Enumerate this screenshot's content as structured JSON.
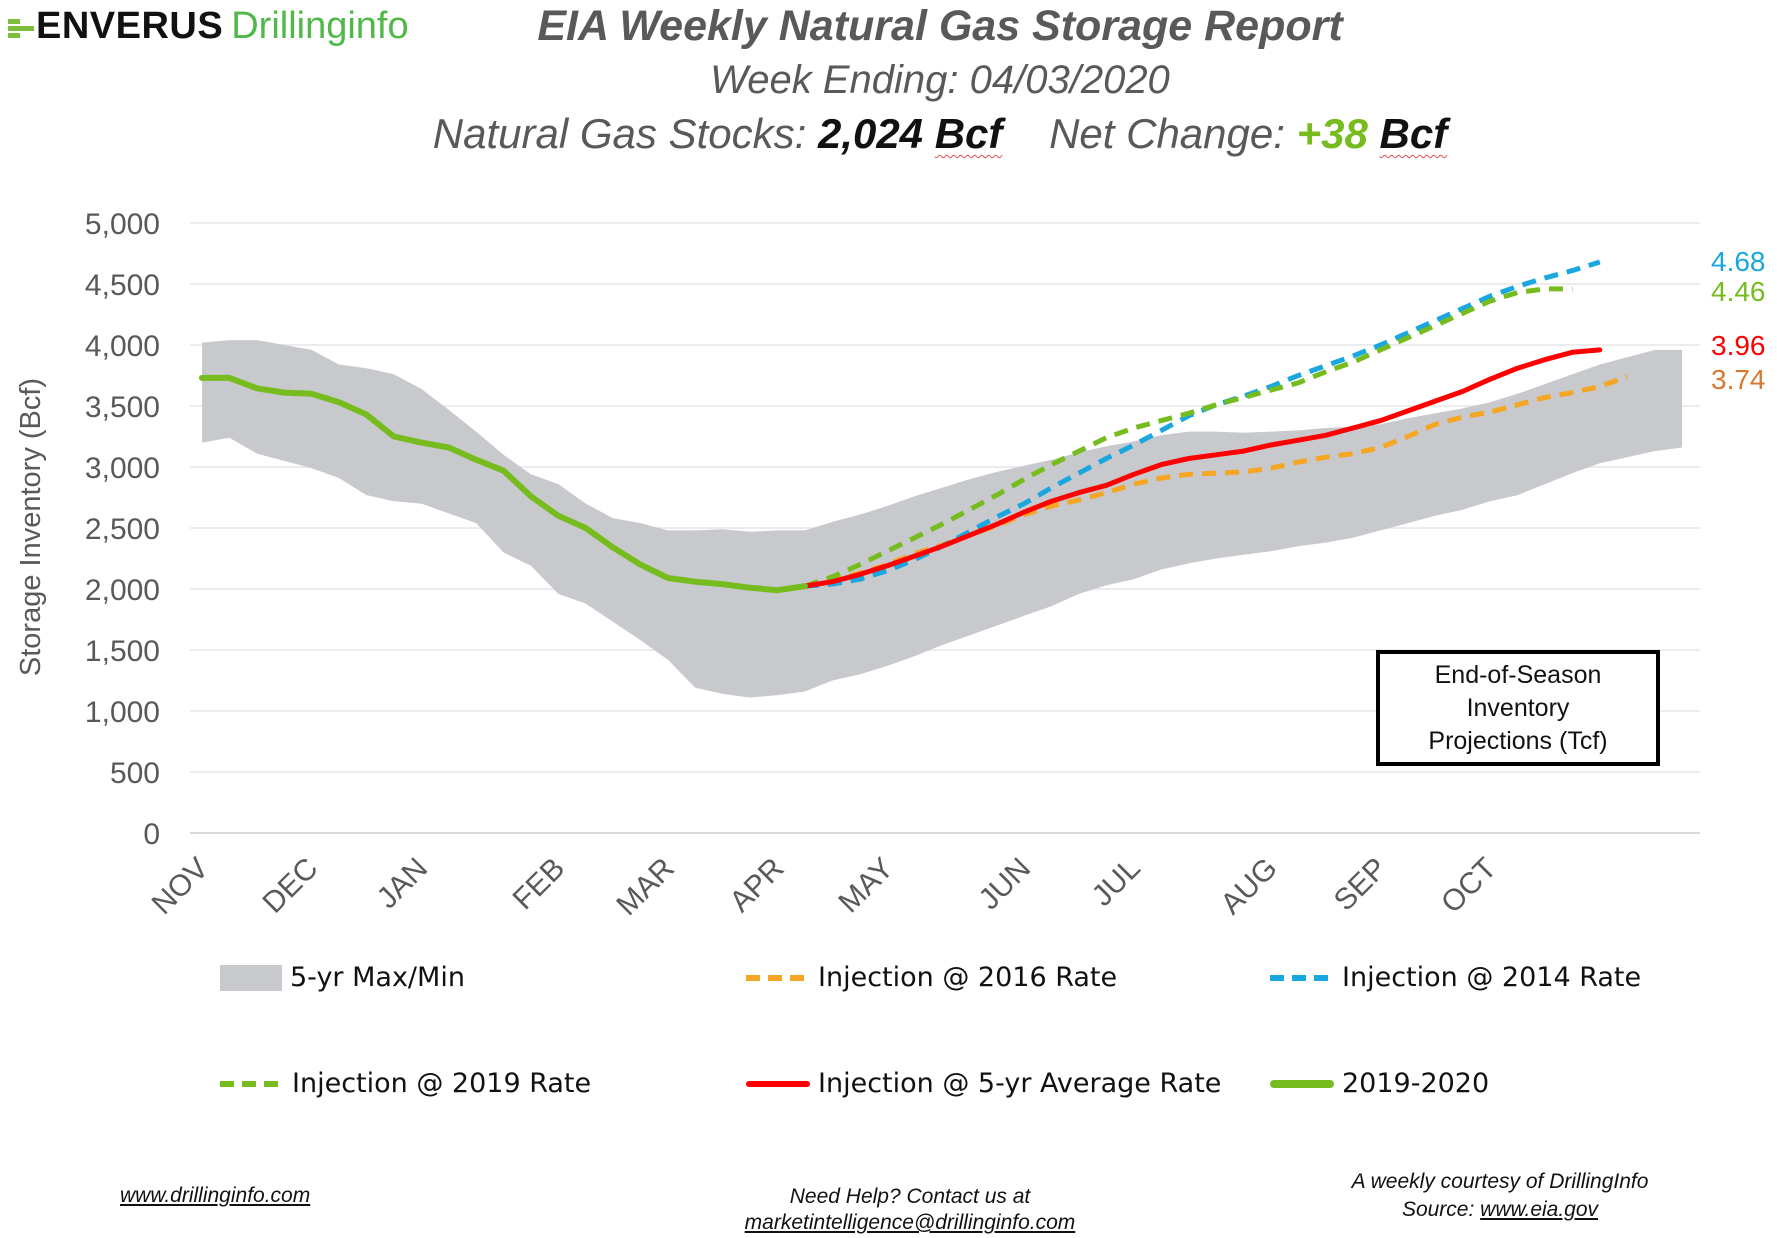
{
  "logo": {
    "brand": "ENVERUS",
    "product": "Drillinginfo"
  },
  "header": {
    "title": "EIA Weekly Natural Gas Storage Report",
    "week_ending_label": "Week Ending:",
    "week_ending_value": "04/03/2020",
    "stocks_label": "Natural Gas Stocks:",
    "stocks_value": "2,024",
    "stocks_unit": "Bcf",
    "net_change_label": "Net Change:",
    "net_change_value": "+38",
    "net_change_unit": "Bcf"
  },
  "projection_box": {
    "line1": "End-of-Season",
    "line2": "Inventory",
    "line3": "Projections (Tcf)"
  },
  "end_labels": [
    {
      "series": "Injection @ 2014 Rate",
      "value": "4.68",
      "color": "#1aa7e0"
    },
    {
      "series": "Injection @ 2019 Rate",
      "value": "4.46",
      "color": "#77bc1f"
    },
    {
      "series": "Injection @ 5-yr Average Rate",
      "value": "3.96",
      "color": "#ff0000"
    },
    {
      "series": "Injection @ 2016 Rate",
      "value": "3.74",
      "color": "#d9782d"
    }
  ],
  "footer": {
    "left_link": "www.drillinginfo.com",
    "center_line1": "Need Help? Contact us at",
    "center_link": "marketintelligence@drillinginfo.com",
    "right_line1": "A weekly courtesy of DrillingInfo",
    "right_source_label": "Source:",
    "right_link": "www.eia.gov"
  },
  "chart_data": {
    "type": "line",
    "title": "EIA Weekly Natural Gas Storage Report",
    "xlabel": "",
    "ylabel": "Storage Inventory (Bcf)",
    "ylim": [
      0,
      5000
    ],
    "yticks": [
      0,
      500,
      1000,
      1500,
      2000,
      2500,
      3000,
      3500,
      4000,
      4500,
      5000
    ],
    "ytick_labels": [
      "0",
      "500",
      "1,000",
      "1,500",
      "2,000",
      "2,500",
      "3,000",
      "3,500",
      "4,000",
      "4,500",
      "5,000"
    ],
    "month_labels": [
      {
        "label": "NOV",
        "week": 0
      },
      {
        "label": "DEC",
        "week": 4
      },
      {
        "label": "JAN",
        "week": 8
      },
      {
        "label": "FEB",
        "week": 13
      },
      {
        "label": "MAR",
        "week": 17
      },
      {
        "label": "APR",
        "week": 21
      },
      {
        "label": "MAY",
        "week": 25
      },
      {
        "label": "JUN",
        "week": 30
      },
      {
        "label": "JUL",
        "week": 34
      },
      {
        "label": "AUG",
        "week": 39
      },
      {
        "label": "SEP",
        "week": 43
      },
      {
        "label": "OCT",
        "week": 47
      }
    ],
    "n_weeks": 55,
    "grid": true,
    "legend_position": "bottom",
    "band": {
      "name": "5-yr Max/Min",
      "color": "#c8c9cd",
      "max": [
        4020,
        4040,
        4040,
        4000,
        3960,
        3840,
        3810,
        3760,
        3640,
        3470,
        3290,
        3100,
        2940,
        2860,
        2700,
        2580,
        2540,
        2480,
        2480,
        2490,
        2470,
        2480,
        2480,
        2550,
        2610,
        2680,
        2760,
        2830,
        2900,
        2960,
        3010,
        3060,
        3120,
        3170,
        3210,
        3260,
        3290,
        3290,
        3280,
        3290,
        3300,
        3320,
        3330,
        3350,
        3400,
        3440,
        3480,
        3530,
        3600,
        3680,
        3760,
        3840,
        3900,
        3960,
        3960
      ],
      "min": [
        3200,
        3240,
        3110,
        3050,
        2990,
        2910,
        2770,
        2720,
        2700,
        2620,
        2540,
        2300,
        2190,
        1960,
        1880,
        1730,
        1580,
        1420,
        1190,
        1140,
        1110,
        1130,
        1160,
        1250,
        1300,
        1370,
        1450,
        1540,
        1620,
        1700,
        1780,
        1860,
        1960,
        2030,
        2080,
        2160,
        2210,
        2250,
        2280,
        2310,
        2350,
        2380,
        2420,
        2480,
        2540,
        2600,
        2650,
        2720,
        2770,
        2860,
        2950,
        3030,
        3080,
        3130,
        3160
      ]
    },
    "series": [
      {
        "name": "2019-2020",
        "color": "#77bc1f",
        "dash": "solid",
        "start_week": 0,
        "values": [
          3730,
          3730,
          3645,
          3610,
          3600,
          3530,
          3430,
          3250,
          3200,
          3160,
          3060,
          2970,
          2760,
          2600,
          2500,
          2340,
          2200,
          2090,
          2060,
          2040,
          2010,
          1990,
          2024
        ]
      },
      {
        "name": "Injection @ 5-yr Average Rate",
        "color": "#ff0000",
        "dash": "solid",
        "start_week": 22,
        "values": [
          2024,
          2060,
          2120,
          2190,
          2270,
          2350,
          2440,
          2530,
          2630,
          2720,
          2790,
          2850,
          2940,
          3020,
          3070,
          3100,
          3130,
          3180,
          3220,
          3260,
          3320,
          3380,
          3460,
          3540,
          3620,
          3720,
          3810,
          3880,
          3940,
          3960
        ]
      },
      {
        "name": "Injection @ 2016 Rate",
        "color": "#f5a623",
        "dash": "dashed",
        "start_week": 22,
        "values": [
          2024,
          2070,
          2130,
          2200,
          2290,
          2360,
          2440,
          2520,
          2610,
          2680,
          2730,
          2790,
          2860,
          2910,
          2940,
          2950,
          2960,
          2990,
          3040,
          3080,
          3110,
          3160,
          3250,
          3350,
          3410,
          3450,
          3510,
          3570,
          3610,
          3660,
          3740
        ]
      },
      {
        "name": "Injection @ 2014 Rate",
        "color": "#1aa7e0",
        "dash": "dashed",
        "start_week": 22,
        "values": [
          2024,
          2040,
          2080,
          2150,
          2240,
          2350,
          2470,
          2590,
          2700,
          2830,
          2950,
          3070,
          3180,
          3300,
          3420,
          3510,
          3580,
          3660,
          3750,
          3830,
          3910,
          4000,
          4100,
          4200,
          4300,
          4400,
          4480,
          4550,
          4610,
          4680
        ]
      },
      {
        "name": "Injection @ 2019 Rate",
        "color": "#77bc1f",
        "dash": "dashed",
        "start_week": 22,
        "values": [
          2024,
          2100,
          2200,
          2310,
          2420,
          2530,
          2650,
          2770,
          2900,
          3020,
          3130,
          3240,
          3320,
          3380,
          3440,
          3510,
          3570,
          3630,
          3690,
          3780,
          3860,
          3960,
          4060,
          4160,
          4260,
          4360,
          4430,
          4460,
          4460
        ]
      }
    ]
  },
  "legend": [
    {
      "label": "5-yr Max/Min",
      "color": "#c8c9cd",
      "style": "box"
    },
    {
      "label": "Injection @ 2016 Rate",
      "color": "#f5a623",
      "style": "dashed"
    },
    {
      "label": "Injection @ 2014 Rate",
      "color": "#1aa7e0",
      "style": "dashed"
    },
    {
      "label": "Injection @ 2019 Rate",
      "color": "#77bc1f",
      "style": "dashed"
    },
    {
      "label": "Injection @ 5-yr Average Rate",
      "color": "#ff0000",
      "style": "solid"
    },
    {
      "label": "2019-2020",
      "color": "#77bc1f",
      "style": "solid-thick"
    }
  ]
}
